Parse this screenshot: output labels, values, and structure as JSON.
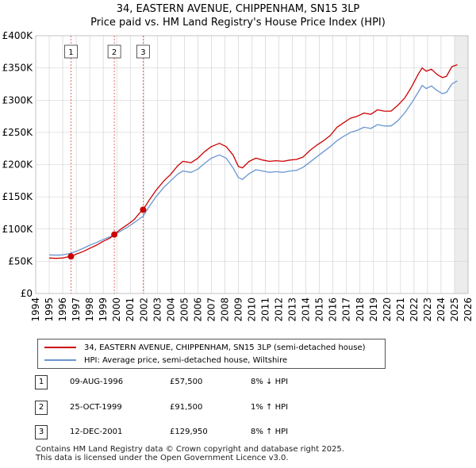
{
  "chart_data": {
    "type": "line",
    "title": "34, EASTERN AVENUE, CHIPPENHAM, SN15 3LP",
    "subtitle": "Price paid vs. HM Land Registry's House Price Index (HPI)",
    "xlim": [
      1994,
      2026
    ],
    "ylim": [
      0,
      400000
    ],
    "x_ticks": [
      1994,
      1995,
      1996,
      1997,
      1998,
      1999,
      2000,
      2001,
      2002,
      2003,
      2004,
      2005,
      2006,
      2007,
      2008,
      2009,
      2010,
      2011,
      2012,
      2013,
      2014,
      2015,
      2016,
      2017,
      2018,
      2019,
      2020,
      2021,
      2022,
      2023,
      2024,
      2025,
      2026
    ],
    "y_ticks": [
      {
        "value": 0,
        "label": "£0"
      },
      {
        "value": 50000,
        "label": "£50K"
      },
      {
        "value": 100000,
        "label": "£100K"
      },
      {
        "value": 150000,
        "label": "£150K"
      },
      {
        "value": 200000,
        "label": "£200K"
      },
      {
        "value": 250000,
        "label": "£250K"
      },
      {
        "value": 300000,
        "label": "£300K"
      },
      {
        "value": 350000,
        "label": "£350K"
      },
      {
        "value": 400000,
        "label": "£400K"
      }
    ],
    "grid": true,
    "series": [
      {
        "name": "34, EASTERN AVENUE, CHIPPENHAM, SN15 3LP (semi-detached house)",
        "color": "#cc0000",
        "points": [
          [
            1995.0,
            55000
          ],
          [
            1995.5,
            54500
          ],
          [
            1996.0,
            55000
          ],
          [
            1996.3,
            56500
          ],
          [
            1996.6,
            57500
          ],
          [
            1997.0,
            61000
          ],
          [
            1997.5,
            65000
          ],
          [
            1998.0,
            70000
          ],
          [
            1998.5,
            75000
          ],
          [
            1999.0,
            81000
          ],
          [
            1999.5,
            86000
          ],
          [
            1999.8,
            91500
          ],
          [
            2000.3,
            100000
          ],
          [
            2000.8,
            107000
          ],
          [
            2001.3,
            115000
          ],
          [
            2001.7,
            125000
          ],
          [
            2001.95,
            129950
          ],
          [
            2002.4,
            145000
          ],
          [
            2002.9,
            160000
          ],
          [
            2003.5,
            175000
          ],
          [
            2004.0,
            185000
          ],
          [
            2004.5,
            198000
          ],
          [
            2004.9,
            205000
          ],
          [
            2005.5,
            203000
          ],
          [
            2006.0,
            210000
          ],
          [
            2006.5,
            220000
          ],
          [
            2007.0,
            228000
          ],
          [
            2007.6,
            233000
          ],
          [
            2008.1,
            228000
          ],
          [
            2008.6,
            215000
          ],
          [
            2009.0,
            197000
          ],
          [
            2009.3,
            195000
          ],
          [
            2009.8,
            205000
          ],
          [
            2010.3,
            210000
          ],
          [
            2010.8,
            207000
          ],
          [
            2011.3,
            205000
          ],
          [
            2011.8,
            206000
          ],
          [
            2012.3,
            205000
          ],
          [
            2012.8,
            207000
          ],
          [
            2013.3,
            208000
          ],
          [
            2013.8,
            212000
          ],
          [
            2014.3,
            222000
          ],
          [
            2014.8,
            230000
          ],
          [
            2015.3,
            237000
          ],
          [
            2015.8,
            245000
          ],
          [
            2016.3,
            258000
          ],
          [
            2016.8,
            265000
          ],
          [
            2017.3,
            272000
          ],
          [
            2017.8,
            275000
          ],
          [
            2018.3,
            280000
          ],
          [
            2018.8,
            278000
          ],
          [
            2019.3,
            285000
          ],
          [
            2019.8,
            283000
          ],
          [
            2020.3,
            283000
          ],
          [
            2020.8,
            292000
          ],
          [
            2021.3,
            303000
          ],
          [
            2021.8,
            320000
          ],
          [
            2022.3,
            340000
          ],
          [
            2022.6,
            350000
          ],
          [
            2022.9,
            345000
          ],
          [
            2023.3,
            348000
          ],
          [
            2023.7,
            340000
          ],
          [
            2024.1,
            335000
          ],
          [
            2024.4,
            337000
          ],
          [
            2024.8,
            352000
          ],
          [
            2025.2,
            355000
          ]
        ]
      },
      {
        "name": "HPI: Average price, semi-detached house, Wiltshire",
        "color": "#6a96d0",
        "points": [
          [
            1995.0,
            60000
          ],
          [
            1995.5,
            59500
          ],
          [
            1996.0,
            60000
          ],
          [
            1996.6,
            62500
          ],
          [
            1997.0,
            65500
          ],
          [
            1997.5,
            70000
          ],
          [
            1998.0,
            75000
          ],
          [
            1998.5,
            79000
          ],
          [
            1999.0,
            84000
          ],
          [
            1999.5,
            88000
          ],
          [
            1999.8,
            90500
          ],
          [
            2000.3,
            97000
          ],
          [
            2000.8,
            103000
          ],
          [
            2001.3,
            110000
          ],
          [
            2001.95,
            120000
          ],
          [
            2002.4,
            135000
          ],
          [
            2002.9,
            150000
          ],
          [
            2003.5,
            165000
          ],
          [
            2004.0,
            175000
          ],
          [
            2004.5,
            185000
          ],
          [
            2004.9,
            190000
          ],
          [
            2005.5,
            188000
          ],
          [
            2006.0,
            193000
          ],
          [
            2006.5,
            202000
          ],
          [
            2007.0,
            210000
          ],
          [
            2007.6,
            215000
          ],
          [
            2008.1,
            210000
          ],
          [
            2008.6,
            195000
          ],
          [
            2009.0,
            180000
          ],
          [
            2009.3,
            177000
          ],
          [
            2009.8,
            186000
          ],
          [
            2010.3,
            192000
          ],
          [
            2010.8,
            190000
          ],
          [
            2011.3,
            188000
          ],
          [
            2011.8,
            189000
          ],
          [
            2012.3,
            188000
          ],
          [
            2012.8,
            190000
          ],
          [
            2013.3,
            191000
          ],
          [
            2013.8,
            196000
          ],
          [
            2014.3,
            204000
          ],
          [
            2014.8,
            212000
          ],
          [
            2015.3,
            220000
          ],
          [
            2015.8,
            228000
          ],
          [
            2016.3,
            237000
          ],
          [
            2016.8,
            244000
          ],
          [
            2017.3,
            250000
          ],
          [
            2017.8,
            253000
          ],
          [
            2018.3,
            258000
          ],
          [
            2018.8,
            256000
          ],
          [
            2019.3,
            262000
          ],
          [
            2019.8,
            260000
          ],
          [
            2020.3,
            260000
          ],
          [
            2020.8,
            268000
          ],
          [
            2021.3,
            280000
          ],
          [
            2021.8,
            295000
          ],
          [
            2022.3,
            312000
          ],
          [
            2022.6,
            323000
          ],
          [
            2022.9,
            318000
          ],
          [
            2023.3,
            322000
          ],
          [
            2023.7,
            315000
          ],
          [
            2024.1,
            310000
          ],
          [
            2024.4,
            312000
          ],
          [
            2024.8,
            325000
          ],
          [
            2025.2,
            330000
          ]
        ]
      }
    ],
    "sales": [
      {
        "label": "1",
        "x": 1996.61,
        "price": 57500
      },
      {
        "label": "2",
        "x": 1999.82,
        "price": 91500
      },
      {
        "label": "3",
        "x": 2001.95,
        "price": 129950
      }
    ],
    "forecast_start": 2025.0
  },
  "legend": {
    "property": "34, EASTERN AVENUE, CHIPPENHAM, SN15 3LP (semi-detached house)",
    "hpi": "HPI: Average price, semi-detached house, Wiltshire"
  },
  "transactions": [
    {
      "num": "1",
      "date": "09-AUG-1996",
      "price": "£57,500",
      "hpi": "8% ↓ HPI"
    },
    {
      "num": "2",
      "date": "25-OCT-1999",
      "price": "£91,500",
      "hpi": "1% ↑ HPI"
    },
    {
      "num": "3",
      "date": "12-DEC-2001",
      "price": "£129,950",
      "hpi": "8% ↑ HPI"
    }
  ],
  "footer": {
    "line1": "Contains HM Land Registry data © Crown copyright and database right 2025.",
    "line2": "This data is licensed under the Open Government Licence v3.0."
  },
  "colors": {
    "property": "#cc0000",
    "hpi": "#6a96d0",
    "grid": "#cccccc",
    "plot_bg": "#ffffff",
    "forecast_bg": "#e0e0e0"
  }
}
